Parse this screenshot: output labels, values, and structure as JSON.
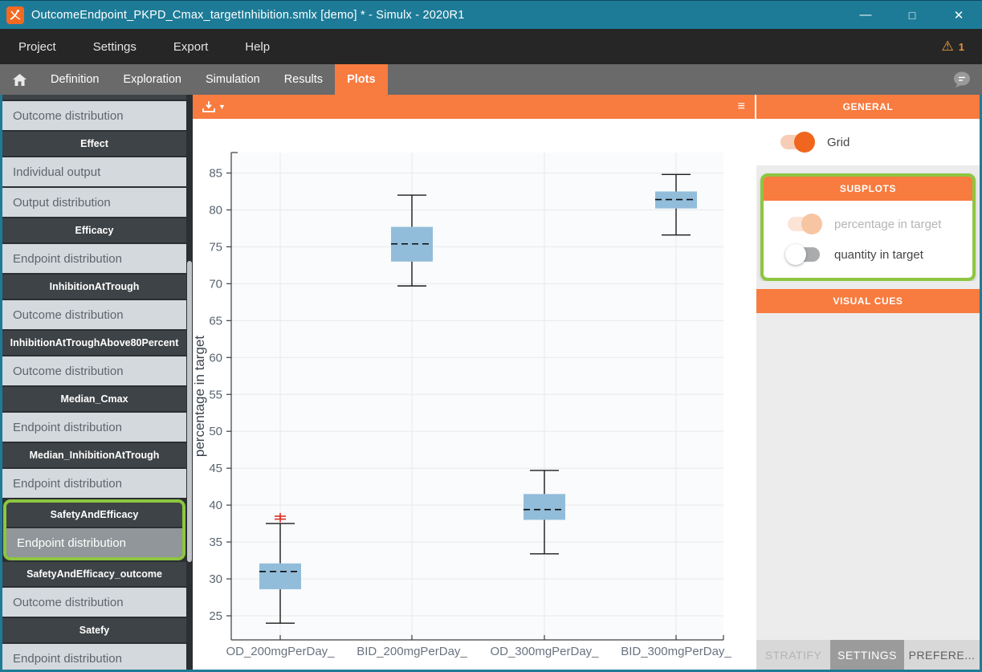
{
  "window": {
    "title": "OutcomeEndpoint_PKPD_Cmax_targetInhibition.smlx [demo] * - Simulx - 2020R1",
    "controls": {
      "minimize": "—",
      "maximize": "□",
      "close": "✕"
    }
  },
  "menu": {
    "items": [
      "Project",
      "Settings",
      "Export",
      "Help"
    ],
    "warning": {
      "glyph": "⚠",
      "count": "1"
    }
  },
  "tabs": {
    "items": [
      "Definition",
      "Exploration",
      "Simulation",
      "Results",
      "Plots"
    ],
    "active": "Plots"
  },
  "sidebar": {
    "items": [
      {
        "type": "item",
        "label": "Outcome distribution"
      },
      {
        "type": "header",
        "label": "Effect"
      },
      {
        "type": "item",
        "label": "Individual output"
      },
      {
        "type": "item",
        "label": "Output distribution"
      },
      {
        "type": "header",
        "label": "Efficacy"
      },
      {
        "type": "item",
        "label": "Endpoint distribution"
      },
      {
        "type": "header",
        "label": "InhibitionAtTrough"
      },
      {
        "type": "item",
        "label": "Outcome distribution"
      },
      {
        "type": "header",
        "label": "InhibitionAtTroughAbove80Percent"
      },
      {
        "type": "item",
        "label": "Outcome distribution"
      },
      {
        "type": "header",
        "label": "Median_Cmax"
      },
      {
        "type": "item",
        "label": "Endpoint distribution"
      },
      {
        "type": "header",
        "label": "Median_InhibitionAtTrough"
      },
      {
        "type": "item",
        "label": "Endpoint distribution"
      },
      {
        "type": "header",
        "label": "SafetyAndEfficacy"
      },
      {
        "type": "item",
        "label": "Endpoint distribution",
        "selected": true
      },
      {
        "type": "header",
        "label": "SafetyAndEfficacy_outcome"
      },
      {
        "type": "item",
        "label": "Outcome distribution"
      },
      {
        "type": "header",
        "label": "Satefy"
      },
      {
        "type": "item",
        "label": "Endpoint distribution"
      }
    ],
    "highlight_range": [
      14,
      15
    ],
    "highlight_color": "#8dc63f"
  },
  "plot_toolbar": {
    "icons": [
      "download-icon",
      "dropdown-caret-icon",
      "menu-icon"
    ],
    "caret_glyph": "▼",
    "menu_glyph": "≡"
  },
  "chart_data": {
    "type": "boxplot",
    "title": "",
    "xlabel": "",
    "ylabel": "percentage in target",
    "categories": [
      "OD_200mgPerDay_",
      "BID_200mgPerDay_",
      "OD_300mgPerDay_",
      "BID_300mgPerDay_"
    ],
    "yticks": [
      25,
      30,
      35,
      40,
      45,
      50,
      55,
      60,
      65,
      70,
      75,
      80,
      85
    ],
    "ylim": [
      21.7,
      87.8
    ],
    "grid": true,
    "legend": null,
    "boxes": [
      {
        "category": "OD_200mgPerDay_",
        "whisker_low": 24.0,
        "q1": 28.6,
        "median": 31.0,
        "q3": 32.1,
        "whisker_high": 37.5,
        "outliers": [
          38.1,
          38.5
        ]
      },
      {
        "category": "BID_200mgPerDay_",
        "whisker_low": 69.7,
        "q1": 73.0,
        "median": 75.4,
        "q3": 77.7,
        "whisker_high": 82.0,
        "outliers": []
      },
      {
        "category": "OD_300mgPerDay_",
        "whisker_low": 33.4,
        "q1": 38.0,
        "median": 39.4,
        "q3": 41.5,
        "whisker_high": 44.7,
        "outliers": []
      },
      {
        "category": "BID_300mgPerDay_",
        "whisker_low": 76.6,
        "q1": 80.2,
        "median": 81.4,
        "q3": 82.5,
        "whisker_high": 84.8,
        "outliers": []
      }
    ],
    "colors": {
      "box_fill": "#92bdda",
      "whisker": "#1a1a1a",
      "median": "#0a0a0a",
      "outlier": "#d93025",
      "grid": "#e7e9ec",
      "axis": "#3c3c3c"
    }
  },
  "settings_panel": {
    "sections": [
      {
        "title": "GENERAL",
        "highlighted": false,
        "toggles": [
          {
            "label": "Grid",
            "state": "on"
          }
        ]
      },
      {
        "title": "SUBPLOTS",
        "highlighted": true,
        "toggles": [
          {
            "label": "percentage in target",
            "state": "on-disabled"
          },
          {
            "label": "quantity in target",
            "state": "off"
          }
        ]
      },
      {
        "title": "VISUAL CUES",
        "highlighted": false,
        "toggles": []
      }
    ],
    "footer_tabs": [
      {
        "label": "STRATIFY",
        "state": "disabled"
      },
      {
        "label": "SETTINGS",
        "state": "active"
      },
      {
        "label": "PREFERE...",
        "state": "normal"
      }
    ]
  }
}
